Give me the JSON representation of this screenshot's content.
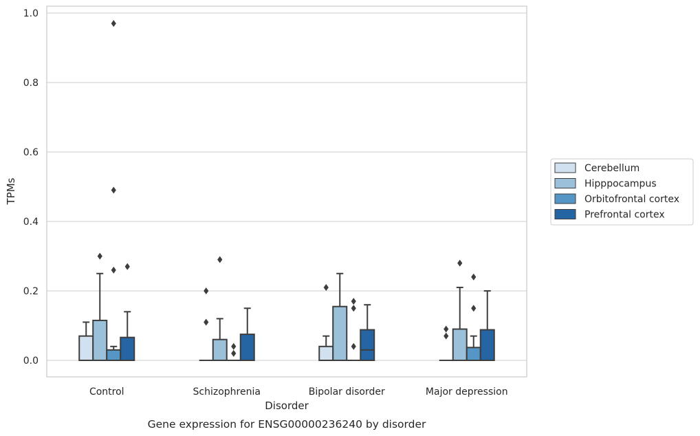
{
  "chart_data": {
    "type": "box",
    "title": "",
    "caption": "Gene expression for ENSG00000236240 by disorder",
    "xlabel": "Disorder",
    "ylabel": "TPMs",
    "ylim": [
      -0.045,
      1.02
    ],
    "yticks": [
      0.0,
      0.2,
      0.4,
      0.6,
      0.8,
      1.0
    ],
    "ytick_labels": [
      "0.0",
      "0.2",
      "0.4",
      "0.6",
      "0.8",
      "1.0"
    ],
    "grid": "horizontal",
    "legend_position": "right",
    "categories": [
      "Control",
      "Schizophrenia",
      "Bipolar disorder",
      "Major depression"
    ],
    "series": [
      {
        "name": "Cerebellum",
        "color": "#d1e1f0",
        "boxes": [
          {
            "whisker_low": 0.0,
            "q1": 0.0,
            "median": 0.0,
            "q3": 0.07,
            "whisker_high": 0.11,
            "outliers": []
          },
          {
            "whisker_low": 0.0,
            "q1": 0.0,
            "median": 0.0,
            "q3": 0.0,
            "whisker_high": 0.0,
            "outliers": [
              0.11,
              0.2
            ]
          },
          {
            "whisker_low": 0.0,
            "q1": 0.0,
            "median": 0.0,
            "q3": 0.04,
            "whisker_high": 0.07,
            "outliers": [
              0.21
            ]
          },
          {
            "whisker_low": 0.0,
            "q1": 0.0,
            "median": 0.0,
            "q3": 0.0,
            "whisker_high": 0.0,
            "outliers": [
              0.07,
              0.09
            ]
          }
        ]
      },
      {
        "name": "Hipppocampus",
        "color": "#9ac0da",
        "boxes": [
          {
            "whisker_low": 0.0,
            "q1": 0.0,
            "median": 0.0,
            "q3": 0.115,
            "whisker_high": 0.25,
            "outliers": [
              0.3
            ]
          },
          {
            "whisker_low": 0.0,
            "q1": 0.0,
            "median": 0.0,
            "q3": 0.06,
            "whisker_high": 0.12,
            "outliers": [
              0.29
            ]
          },
          {
            "whisker_low": 0.0,
            "q1": 0.0,
            "median": 0.0,
            "q3": 0.155,
            "whisker_high": 0.25,
            "outliers": []
          },
          {
            "whisker_low": 0.0,
            "q1": 0.0,
            "median": 0.0,
            "q3": 0.09,
            "whisker_high": 0.21,
            "outliers": [
              0.28
            ]
          }
        ]
      },
      {
        "name": "Orbitofrontal cortex",
        "color": "#5596c7",
        "boxes": [
          {
            "whisker_low": 0.0,
            "q1": 0.0,
            "median": 0.0,
            "q3": 0.03,
            "whisker_high": 0.04,
            "outliers": [
              0.26,
              0.49,
              0.97
            ]
          },
          {
            "whisker_low": 0.0,
            "q1": 0.0,
            "median": 0.0,
            "q3": 0.0,
            "whisker_high": 0.0,
            "outliers": [
              0.02,
              0.04
            ]
          },
          {
            "whisker_low": 0.0,
            "q1": 0.0,
            "median": 0.0,
            "q3": 0.0,
            "whisker_high": 0.0,
            "outliers": [
              0.04,
              0.15,
              0.17
            ]
          },
          {
            "whisker_low": 0.0,
            "q1": 0.0,
            "median": 0.0,
            "q3": 0.037,
            "whisker_high": 0.07,
            "outliers": [
              0.15,
              0.24
            ]
          }
        ]
      },
      {
        "name": "Prefrontal cortex",
        "color": "#2565a3",
        "boxes": [
          {
            "whisker_low": 0.0,
            "q1": 0.0,
            "median": 0.0,
            "q3": 0.066,
            "whisker_high": 0.14,
            "outliers": [
              0.27
            ]
          },
          {
            "whisker_low": 0.0,
            "q1": 0.0,
            "median": 0.0,
            "q3": 0.075,
            "whisker_high": 0.15,
            "outliers": []
          },
          {
            "whisker_low": 0.0,
            "q1": 0.0,
            "median": 0.03,
            "q3": 0.088,
            "whisker_high": 0.16,
            "outliers": []
          },
          {
            "whisker_low": 0.0,
            "q1": 0.0,
            "median": 0.0,
            "q3": 0.088,
            "whisker_high": 0.2,
            "outliers": []
          }
        ]
      }
    ]
  }
}
